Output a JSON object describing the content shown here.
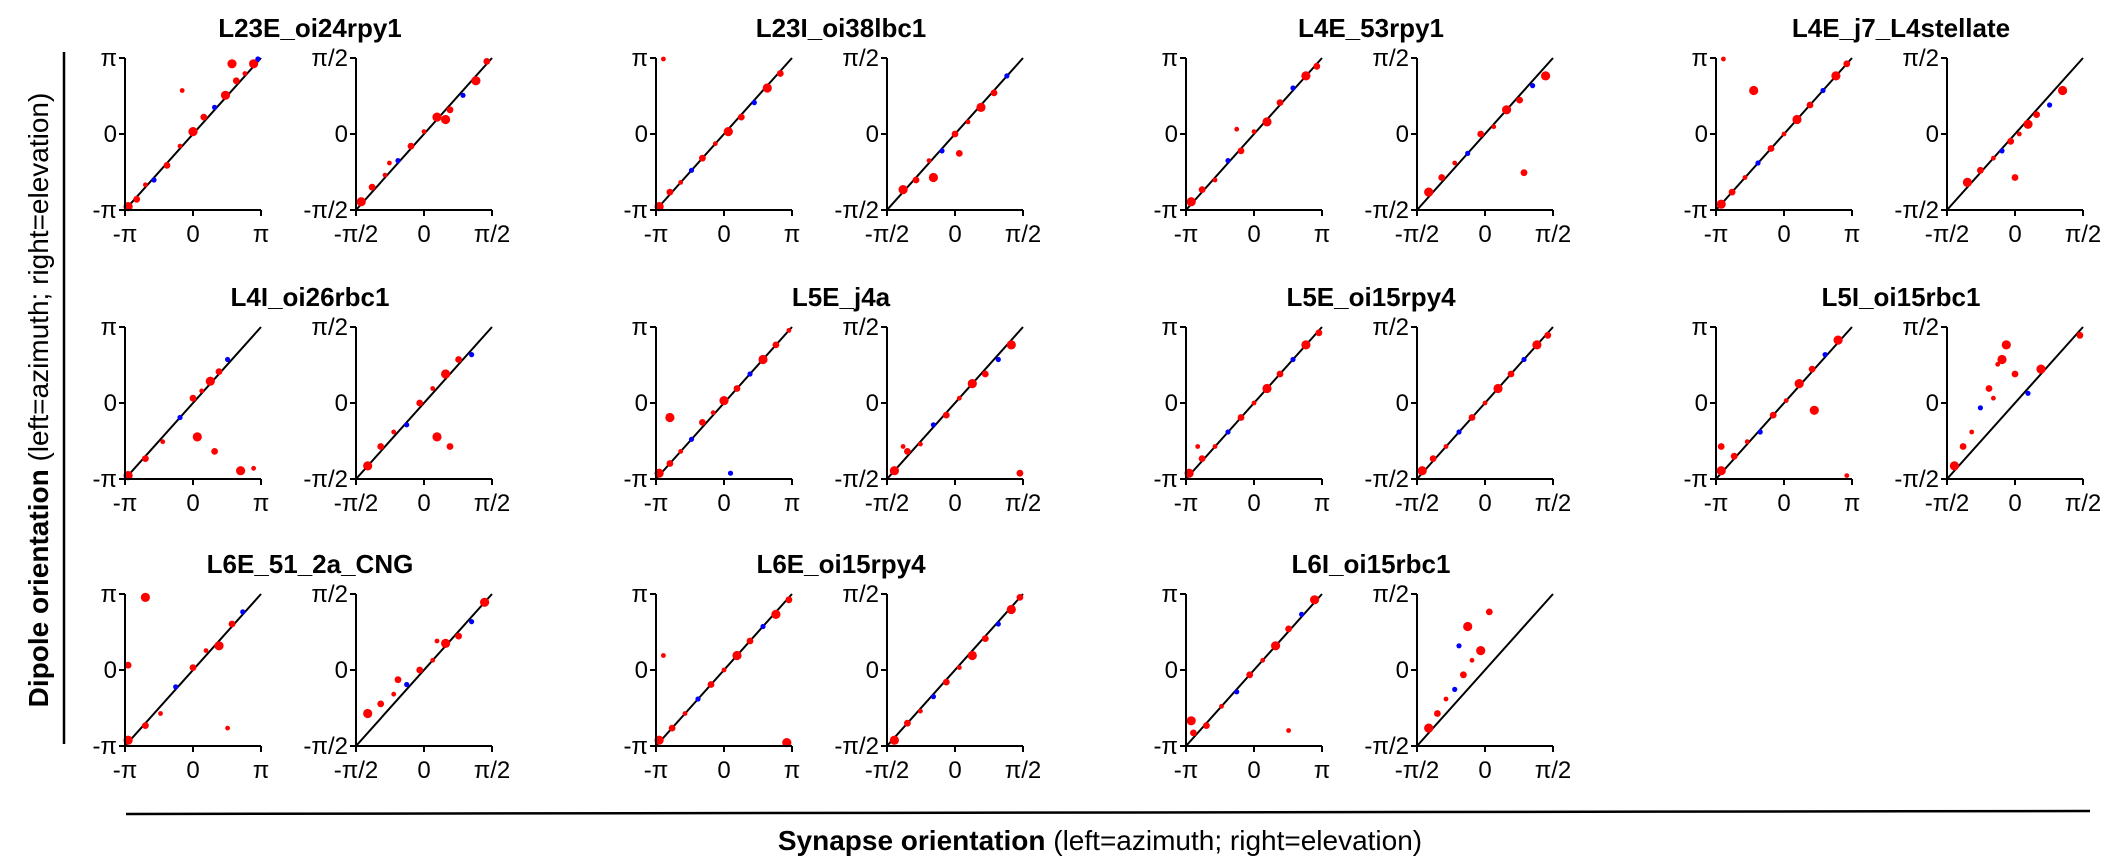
{
  "figure": {
    "ylabel_bold": "Dipole orientation",
    "ylabel_rest": "(left=azimuth; right=elevation)",
    "xlabel_bold": "Synapse orientation",
    "xlabel_rest": "(left=azimuth; right=elevation)"
  },
  "colors": {
    "points_primary": "#ff0000",
    "points_secondary": "#0000ff",
    "identity_line": "#000000",
    "axes": "#000000"
  },
  "axis_ticks": {
    "azimuth": [
      "-π",
      "0",
      "π"
    ],
    "elevation": [
      "-π/2",
      "0",
      "π/2"
    ]
  },
  "chart_data": [
    {
      "type": "scatter",
      "title": "L23E_oi24rpy1",
      "panels": [
        {
          "quantity": "azimuth",
          "xlim": [
            -3.1416,
            3.1416
          ],
          "ylim": [
            -3.1416,
            3.1416
          ],
          "identity_line": true,
          "x": [
            -3.0,
            -2.6,
            -2.2,
            -1.8,
            -1.2,
            -0.6,
            0.0,
            0.5,
            1.0,
            1.5,
            2.0,
            2.4,
            2.8,
            3.0,
            -0.5,
            1.8
          ],
          "y": [
            -3.0,
            -2.7,
            -2.1,
            -1.9,
            -1.3,
            -0.5,
            0.1,
            0.7,
            1.1,
            1.6,
            2.2,
            2.5,
            2.9,
            3.1,
            1.8,
            2.9
          ]
        },
        {
          "quantity": "elevation",
          "xlim": [
            -1.5708,
            1.5708
          ],
          "ylim": [
            -1.5708,
            1.5708
          ],
          "identity_line": true,
          "x": [
            -1.45,
            -1.2,
            -0.9,
            -0.6,
            -0.3,
            0.0,
            0.3,
            0.6,
            0.9,
            1.2,
            1.45,
            -0.8,
            0.5
          ],
          "y": [
            -1.4,
            -1.1,
            -0.85,
            -0.55,
            -0.25,
            0.05,
            0.35,
            0.5,
            0.8,
            1.1,
            1.5,
            -0.6,
            0.3
          ]
        }
      ]
    },
    {
      "type": "scatter",
      "title": "L23I_oi38lbc1",
      "panels": [
        {
          "quantity": "azimuth",
          "xlim": [
            -3.1416,
            3.1416
          ],
          "ylim": [
            -3.1416,
            3.1416
          ],
          "identity_line": true,
          "x": [
            -3.0,
            -2.5,
            -2.0,
            -1.5,
            -1.0,
            -0.4,
            0.2,
            0.8,
            1.4,
            2.0,
            2.6,
            -2.8
          ],
          "y": [
            -3.0,
            -2.4,
            -2.0,
            -1.5,
            -1.0,
            -0.4,
            0.1,
            0.7,
            1.3,
            1.9,
            2.5,
            3.1
          ]
        },
        {
          "quantity": "elevation",
          "xlim": [
            -1.5708,
            1.5708
          ],
          "ylim": [
            -1.5708,
            1.5708
          ],
          "identity_line": true,
          "x": [
            -1.2,
            -0.9,
            -0.6,
            -0.3,
            0.0,
            0.3,
            0.6,
            0.9,
            1.2,
            -0.5,
            0.1
          ],
          "y": [
            -1.15,
            -0.95,
            -0.55,
            -0.35,
            0.0,
            0.25,
            0.55,
            0.85,
            1.2,
            -0.9,
            -0.4
          ]
        }
      ]
    },
    {
      "type": "scatter",
      "title": "L4E_53rpy1",
      "panels": [
        {
          "quantity": "azimuth",
          "xlim": [
            -3.1416,
            3.1416
          ],
          "ylim": [
            -3.1416,
            3.1416
          ],
          "identity_line": true,
          "x": [
            -2.9,
            -2.4,
            -1.8,
            -1.2,
            -0.6,
            0.0,
            0.6,
            1.2,
            1.8,
            2.4,
            2.9,
            -0.8
          ],
          "y": [
            -2.8,
            -2.3,
            -1.9,
            -1.1,
            -0.7,
            0.1,
            0.5,
            1.3,
            1.9,
            2.4,
            2.8,
            0.2
          ]
        },
        {
          "quantity": "elevation",
          "xlim": [
            -1.5708,
            1.5708
          ],
          "ylim": [
            -1.5708,
            1.5708
          ],
          "identity_line": true,
          "x": [
            -1.3,
            -1.0,
            -0.7,
            -0.4,
            -0.1,
            0.2,
            0.5,
            0.8,
            1.1,
            1.4,
            0.9
          ],
          "y": [
            -1.2,
            -0.9,
            -0.6,
            -0.4,
            0.0,
            0.15,
            0.5,
            0.7,
            1.0,
            1.2,
            -0.8
          ]
        }
      ]
    },
    {
      "type": "scatter",
      "title": "L4E_j7_L4stellate",
      "panels": [
        {
          "quantity": "azimuth",
          "xlim": [
            -3.1416,
            3.1416
          ],
          "ylim": [
            -3.1416,
            3.1416
          ],
          "identity_line": true,
          "x": [
            -2.9,
            -2.4,
            -1.8,
            -1.2,
            -0.6,
            0.0,
            0.6,
            1.2,
            1.8,
            2.4,
            2.9,
            -2.8,
            -1.4
          ],
          "y": [
            -2.9,
            -2.4,
            -1.8,
            -1.2,
            -0.6,
            0.0,
            0.6,
            1.2,
            1.8,
            2.4,
            2.9,
            3.1,
            1.8
          ]
        },
        {
          "quantity": "elevation",
          "xlim": [
            -1.5708,
            1.5708
          ],
          "ylim": [
            -1.5708,
            1.5708
          ],
          "identity_line": true,
          "x": [
            -1.1,
            -0.8,
            -0.5,
            -0.3,
            -0.1,
            0.1,
            0.3,
            0.5,
            0.8,
            1.1,
            0.0
          ],
          "y": [
            -1.0,
            -0.75,
            -0.5,
            -0.35,
            -0.15,
            0.0,
            0.2,
            0.4,
            0.6,
            0.9,
            -0.9
          ]
        }
      ]
    },
    {
      "type": "scatter",
      "title": "L4I_oi26rbc1",
      "panels": [
        {
          "quantity": "azimuth",
          "xlim": [
            -3.1416,
            3.1416
          ],
          "ylim": [
            -3.1416,
            3.1416
          ],
          "identity_line": true,
          "x": [
            -3.0,
            -2.2,
            -1.4,
            -0.6,
            0.0,
            0.4,
            0.8,
            1.2,
            1.6,
            0.2,
            1.0,
            2.8,
            2.2
          ],
          "y": [
            -3.0,
            -2.3,
            -1.6,
            -0.6,
            0.2,
            0.5,
            0.9,
            1.3,
            1.8,
            -1.4,
            -2.0,
            -2.7,
            -2.8
          ]
        },
        {
          "quantity": "elevation",
          "xlim": [
            -1.5708,
            1.5708
          ],
          "ylim": [
            -1.5708,
            1.5708
          ],
          "identity_line": true,
          "x": [
            -1.3,
            -1.0,
            -0.7,
            -0.4,
            -0.1,
            0.2,
            0.5,
            0.8,
            1.1,
            0.3,
            0.6
          ],
          "y": [
            -1.3,
            -0.9,
            -0.6,
            -0.45,
            0.0,
            0.3,
            0.6,
            0.9,
            1.0,
            -0.7,
            -0.9
          ]
        }
      ]
    },
    {
      "type": "scatter",
      "title": "L5E_j4a",
      "panels": [
        {
          "quantity": "azimuth",
          "xlim": [
            -3.1416,
            3.1416
          ],
          "ylim": [
            -3.1416,
            3.1416
          ],
          "identity_line": true,
          "x": [
            -3.0,
            -2.5,
            -2.0,
            -1.5,
            -1.0,
            -0.5,
            0.0,
            0.6,
            1.2,
            1.8,
            2.4,
            3.0,
            -2.5,
            0.3
          ],
          "y": [
            -2.9,
            -2.5,
            -2.0,
            -1.5,
            -0.8,
            -0.4,
            0.1,
            0.6,
            1.2,
            1.8,
            2.4,
            3.0,
            -0.6,
            -2.9
          ]
        },
        {
          "quantity": "elevation",
          "xlim": [
            -1.5708,
            1.5708
          ],
          "ylim": [
            -1.5708,
            1.5708
          ],
          "identity_line": true,
          "x": [
            -1.4,
            -1.1,
            -0.8,
            -0.5,
            -0.2,
            0.1,
            0.4,
            0.7,
            1.0,
            1.3,
            1.5,
            -1.2
          ],
          "y": [
            -1.4,
            -1.0,
            -0.85,
            -0.45,
            -0.25,
            0.1,
            0.4,
            0.6,
            0.9,
            1.2,
            -1.45,
            -0.9
          ]
        }
      ]
    },
    {
      "type": "scatter",
      "title": "L5E_oi15rpy4",
      "panels": [
        {
          "quantity": "azimuth",
          "xlim": [
            -3.1416,
            3.1416
          ],
          "ylim": [
            -3.1416,
            3.1416
          ],
          "identity_line": true,
          "x": [
            -3.0,
            -2.4,
            -1.8,
            -1.2,
            -0.6,
            0.0,
            0.6,
            1.2,
            1.8,
            2.4,
            3.0,
            -2.6
          ],
          "y": [
            -2.9,
            -2.3,
            -1.8,
            -1.2,
            -0.6,
            0.0,
            0.6,
            1.2,
            1.8,
            2.4,
            2.9,
            -1.8
          ]
        },
        {
          "quantity": "elevation",
          "xlim": [
            -1.5708,
            1.5708
          ],
          "ylim": [
            -1.5708,
            1.5708
          ],
          "identity_line": true,
          "x": [
            -1.45,
            -1.2,
            -0.9,
            -0.6,
            -0.3,
            0.0,
            0.3,
            0.6,
            0.9,
            1.2,
            1.45
          ],
          "y": [
            -1.4,
            -1.15,
            -0.9,
            -0.6,
            -0.3,
            0.0,
            0.3,
            0.6,
            0.9,
            1.2,
            1.4
          ]
        }
      ]
    },
    {
      "type": "scatter",
      "title": "L5I_oi15rbc1",
      "panels": [
        {
          "quantity": "azimuth",
          "xlim": [
            -3.1416,
            3.1416
          ],
          "ylim": [
            -3.1416,
            3.1416
          ],
          "identity_line": true,
          "x": [
            -2.9,
            -2.3,
            -1.7,
            -1.1,
            -0.5,
            0.1,
            0.7,
            1.3,
            1.9,
            2.5,
            -2.9,
            2.9,
            1.4
          ],
          "y": [
            -2.8,
            -2.2,
            -1.6,
            -1.2,
            -0.5,
            0.1,
            0.8,
            1.4,
            2.0,
            2.6,
            -1.8,
            -3.0,
            -0.3
          ]
        },
        {
          "quantity": "elevation",
          "xlim": [
            -1.5708,
            1.5708
          ],
          "ylim": [
            -1.5708,
            1.5708
          ],
          "identity_line": true,
          "x": [
            -1.4,
            -1.2,
            -1.0,
            -0.8,
            -0.6,
            -0.4,
            -0.2,
            0.0,
            0.3,
            0.6,
            1.5,
            -0.5,
            -0.3
          ],
          "y": [
            -1.3,
            -0.9,
            -0.6,
            -0.1,
            0.3,
            0.8,
            1.2,
            0.6,
            0.2,
            0.7,
            1.4,
            0.1,
            0.9
          ]
        }
      ]
    },
    {
      "type": "scatter",
      "title": "L6E_51_2a_CNG",
      "panels": [
        {
          "quantity": "azimuth",
          "xlim": [
            -3.1416,
            3.1416
          ],
          "ylim": [
            -3.1416,
            3.1416
          ],
          "identity_line": true,
          "x": [
            -3.0,
            -2.2,
            -1.5,
            -0.8,
            0.0,
            0.6,
            1.2,
            1.8,
            2.3,
            -2.2,
            -3.0,
            1.6
          ],
          "y": [
            -2.9,
            -2.3,
            -1.8,
            -0.7,
            0.1,
            0.8,
            1.0,
            1.9,
            2.4,
            3.0,
            0.2,
            -2.4
          ]
        },
        {
          "quantity": "elevation",
          "xlim": [
            -1.5708,
            1.5708
          ],
          "ylim": [
            -1.5708,
            1.5708
          ],
          "identity_line": true,
          "x": [
            -1.3,
            -1.0,
            -0.7,
            -0.4,
            -0.1,
            0.2,
            0.5,
            0.8,
            1.1,
            1.4,
            -0.6,
            0.3
          ],
          "y": [
            -0.9,
            -0.7,
            -0.5,
            -0.3,
            0.0,
            0.2,
            0.55,
            0.7,
            1.0,
            1.4,
            -0.2,
            0.6
          ]
        }
      ]
    },
    {
      "type": "scatter",
      "title": "L6E_oi15rpy4",
      "panels": [
        {
          "quantity": "azimuth",
          "xlim": [
            -3.1416,
            3.1416
          ],
          "ylim": [
            -3.1416,
            3.1416
          ],
          "identity_line": true,
          "x": [
            -3.0,
            -2.4,
            -1.8,
            -1.2,
            -0.6,
            0.0,
            0.6,
            1.2,
            1.8,
            2.4,
            3.0,
            -2.8,
            2.9
          ],
          "y": [
            -2.9,
            -2.4,
            -1.8,
            -1.2,
            -0.6,
            0.0,
            0.6,
            1.2,
            1.8,
            2.3,
            2.9,
            0.6,
            -3.0
          ]
        },
        {
          "quantity": "elevation",
          "xlim": [
            -1.5708,
            1.5708
          ],
          "ylim": [
            -1.5708,
            1.5708
          ],
          "identity_line": true,
          "x": [
            -1.4,
            -1.1,
            -0.8,
            -0.5,
            -0.2,
            0.1,
            0.4,
            0.7,
            1.0,
            1.3,
            1.5
          ],
          "y": [
            -1.45,
            -1.1,
            -0.85,
            -0.55,
            -0.25,
            0.05,
            0.3,
            0.65,
            0.95,
            1.25,
            1.5
          ]
        }
      ]
    },
    {
      "type": "scatter",
      "title": "L6I_oi15rbc1",
      "panels": [
        {
          "quantity": "azimuth",
          "xlim": [
            -3.1416,
            3.1416
          ],
          "ylim": [
            -3.1416,
            3.1416
          ],
          "identity_line": true,
          "x": [
            -2.9,
            -2.2,
            -1.5,
            -0.8,
            -0.2,
            0.4,
            1.0,
            1.6,
            2.2,
            2.8,
            -2.8,
            1.6
          ],
          "y": [
            -2.1,
            -2.3,
            -1.5,
            -0.9,
            -0.2,
            0.4,
            1.0,
            1.7,
            2.3,
            2.9,
            -2.6,
            -2.5
          ]
        },
        {
          "quantity": "elevation",
          "xlim": [
            -1.5708,
            1.5708
          ],
          "ylim": [
            -1.5708,
            1.5708
          ],
          "identity_line": true,
          "x": [
            -1.3,
            -1.1,
            -0.9,
            -0.7,
            -0.5,
            -0.3,
            -0.1,
            0.1,
            -0.6,
            -0.4
          ],
          "y": [
            -1.2,
            -0.9,
            -0.6,
            -0.4,
            -0.1,
            0.2,
            0.4,
            1.2,
            0.5,
            0.9
          ]
        }
      ]
    }
  ]
}
